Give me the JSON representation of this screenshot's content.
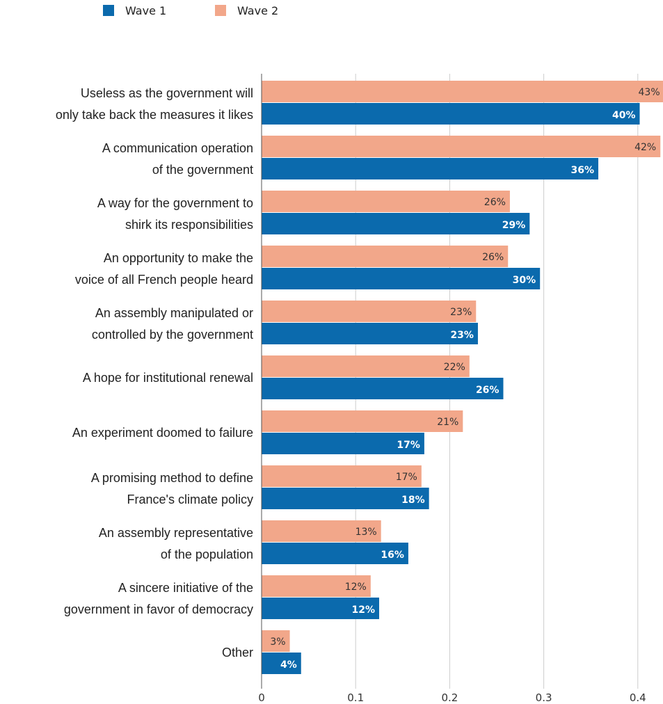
{
  "chart_data": {
    "type": "bar",
    "orientation": "horizontal",
    "title": "",
    "xlabel": "",
    "ylabel": "",
    "xlim": [
      0,
      0.43
    ],
    "x_ticks": [
      "0",
      "0.1",
      "0.2",
      "0.3",
      "0.4"
    ],
    "x_tick_values": [
      0,
      0.1,
      0.2,
      0.3,
      0.4
    ],
    "grid": true,
    "legend_position": "top-left",
    "categories": [
      [
        "Useless as the government will",
        "only take back the measures it likes"
      ],
      [
        "A communication operation",
        "of the government"
      ],
      [
        "A way for the government to",
        "shirk its responsibilities"
      ],
      [
        "An opportunity to make the",
        "voice of all French people heard"
      ],
      [
        "An assembly manipulated or",
        "controlled by the government"
      ],
      [
        "A hope for institutional renewal"
      ],
      [
        "An experiment doomed to failure"
      ],
      [
        "A promising method to define",
        "France's climate policy"
      ],
      [
        "An assembly representative",
        "of the population"
      ],
      [
        "A sincere initiative of the",
        "government in favor of democracy"
      ],
      [
        "Other"
      ]
    ],
    "series": [
      {
        "name": "Wave 1",
        "color": "#0b6aad",
        "values": [
          0.402,
          0.358,
          0.285,
          0.296,
          0.23,
          0.257,
          0.173,
          0.178,
          0.156,
          0.125,
          0.042
        ],
        "labels": [
          "40%",
          "36%",
          "29%",
          "30%",
          "23%",
          "26%",
          "17%",
          "18%",
          "16%",
          "12%",
          "4%"
        ]
      },
      {
        "name": "Wave 2",
        "color": "#f2a78a",
        "values": [
          0.428,
          0.424,
          0.264,
          0.262,
          0.228,
          0.221,
          0.214,
          0.17,
          0.127,
          0.116,
          0.03
        ],
        "labels": [
          "43%",
          "42%",
          "26%",
          "26%",
          "23%",
          "22%",
          "21%",
          "17%",
          "13%",
          "12%",
          "3%"
        ]
      }
    ]
  }
}
